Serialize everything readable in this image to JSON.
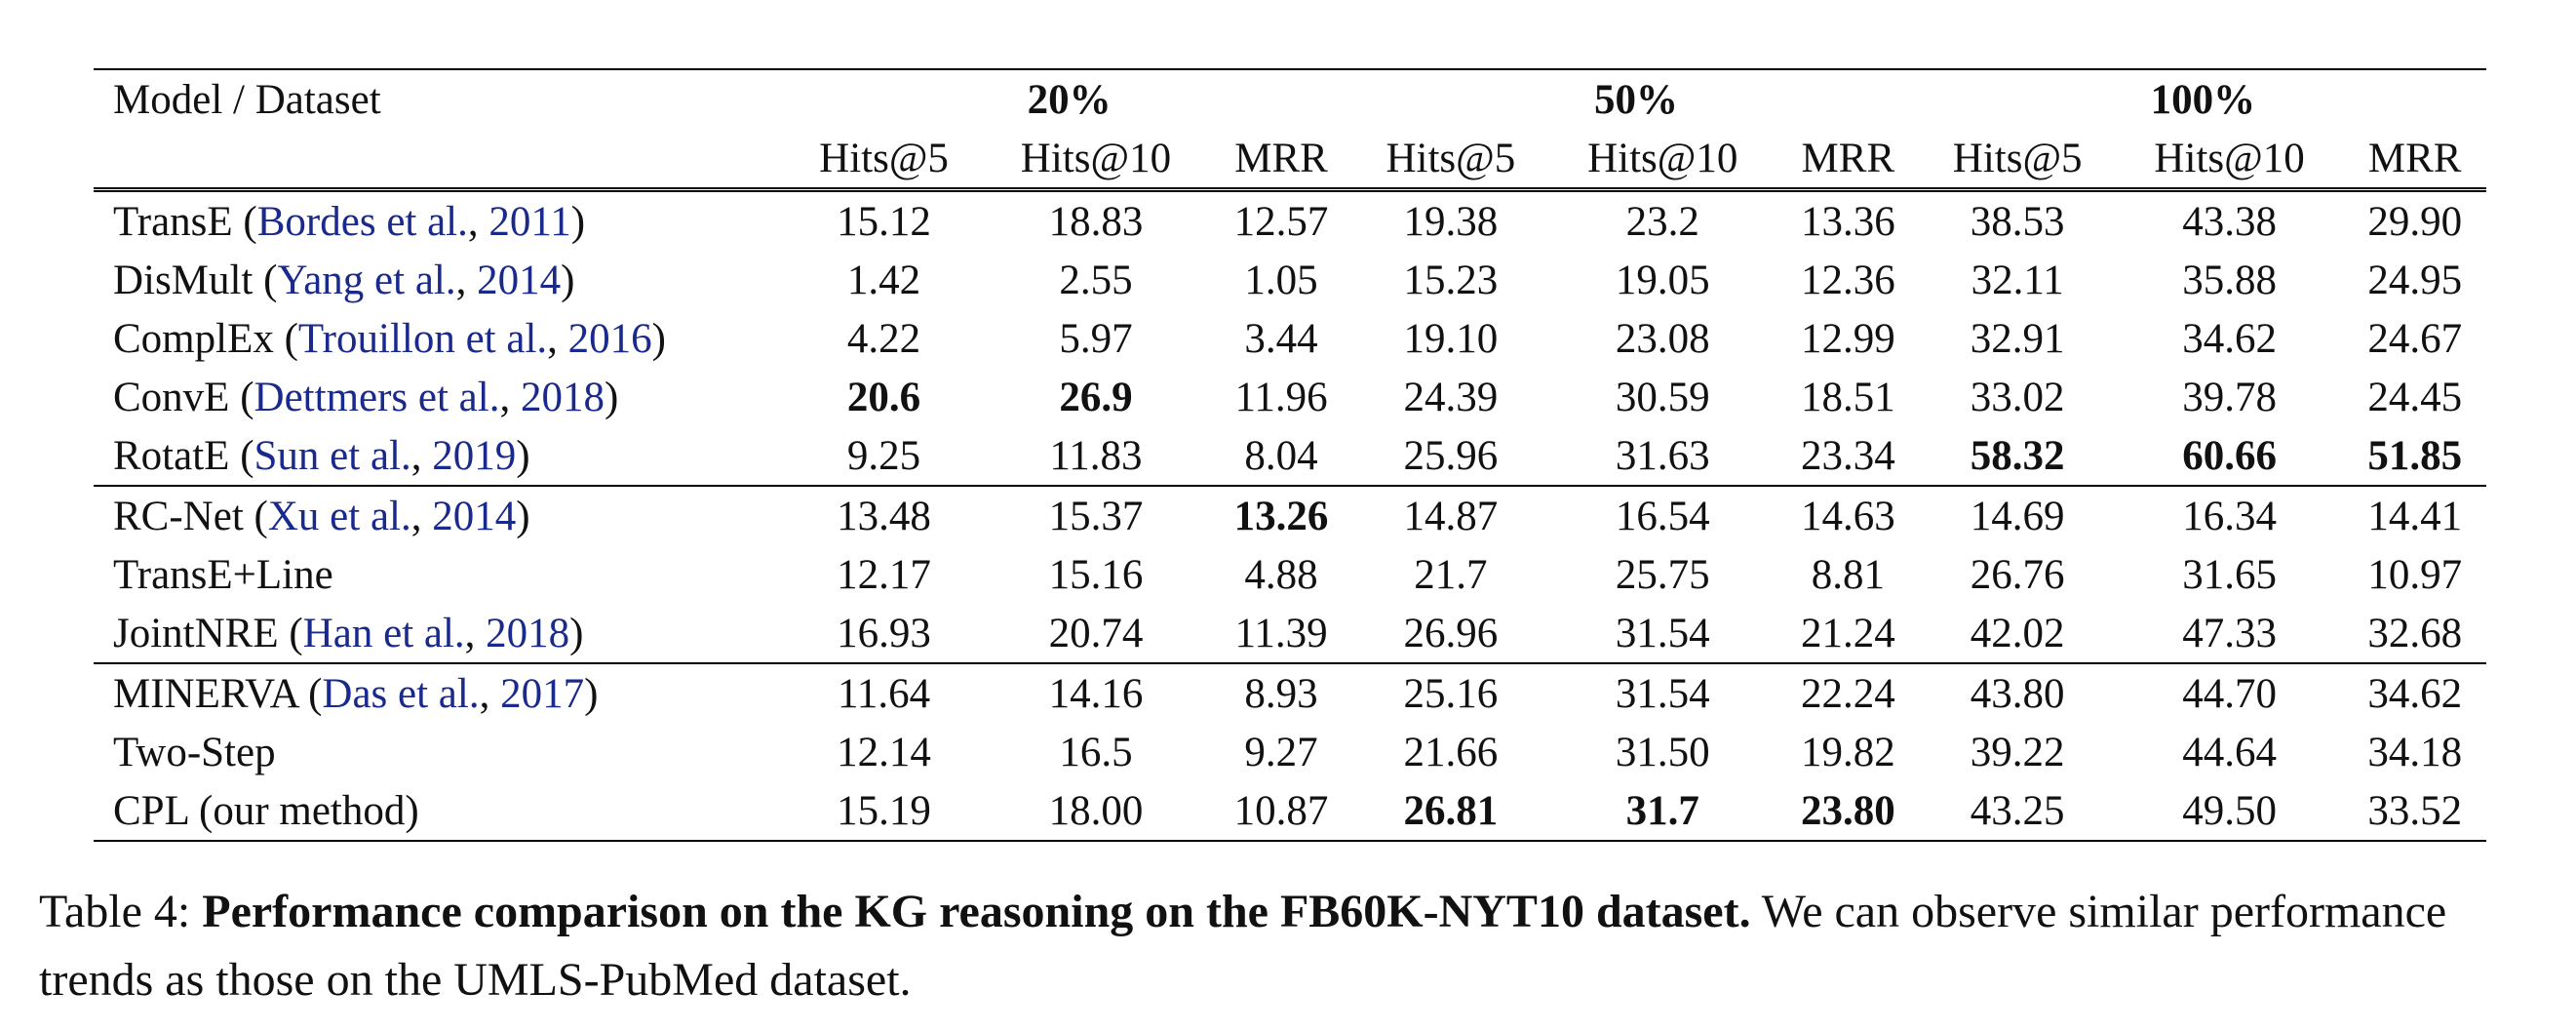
{
  "table": {
    "corner_header": "Model / Dataset",
    "groups": [
      "20%",
      "50%",
      "100%"
    ],
    "metrics": [
      "Hits@5",
      "Hits@10",
      "MRR",
      "Hits@5",
      "Hits@10",
      "MRR",
      "Hits@5",
      "Hits@10",
      "MRR"
    ],
    "sections": [
      {
        "rows": [
          {
            "model": "TransE",
            "cite_author": "Bordes et al.",
            "cite_year": "2011",
            "values": [
              "15.12",
              "18.83",
              "12.57",
              "19.38",
              "23.2",
              "13.36",
              "38.53",
              "43.38",
              "29.90"
            ],
            "bold": []
          },
          {
            "model": "DisMult",
            "cite_author": "Yang et al.",
            "cite_year": "2014",
            "values": [
              "1.42",
              "2.55",
              "1.05",
              "15.23",
              "19.05",
              "12.36",
              "32.11",
              "35.88",
              "24.95"
            ],
            "bold": []
          },
          {
            "model": "ComplEx",
            "cite_author": "Trouillon et al.",
            "cite_year": "2016",
            "values": [
              "4.22",
              "5.97",
              "3.44",
              "19.10",
              "23.08",
              "12.99",
              "32.91",
              "34.62",
              "24.67"
            ],
            "bold": []
          },
          {
            "model": "ConvE",
            "cite_author": "Dettmers et al.",
            "cite_year": "2018",
            "values": [
              "20.6",
              "26.9",
              "11.96",
              "24.39",
              "30.59",
              "18.51",
              "33.02",
              "39.78",
              "24.45"
            ],
            "bold": [
              0,
              1
            ]
          },
          {
            "model": "RotatE",
            "cite_author": "Sun et al.",
            "cite_year": "2019",
            "values": [
              "9.25",
              "11.83",
              "8.04",
              "25.96",
              "31.63",
              "23.34",
              "58.32",
              "60.66",
              "51.85"
            ],
            "bold": [
              6,
              7,
              8
            ]
          }
        ]
      },
      {
        "rows": [
          {
            "model": "RC-Net",
            "cite_author": "Xu et al.",
            "cite_year": "2014",
            "values": [
              "13.48",
              "15.37",
              "13.26",
              "14.87",
              "16.54",
              "14.63",
              "14.69",
              "16.34",
              "14.41"
            ],
            "bold": [
              2
            ]
          },
          {
            "model": "TransE+Line",
            "cite_author": "",
            "cite_year": "",
            "values": [
              "12.17",
              "15.16",
              "4.88",
              "21.7",
              "25.75",
              "8.81",
              "26.76",
              "31.65",
              "10.97"
            ],
            "bold": []
          },
          {
            "model": "JointNRE",
            "cite_author": "Han et al.",
            "cite_year": "2018",
            "values": [
              "16.93",
              "20.74",
              "11.39",
              "26.96",
              "31.54",
              "21.24",
              "42.02",
              "47.33",
              "32.68"
            ],
            "bold": []
          }
        ]
      },
      {
        "rows": [
          {
            "model": "MINERVA",
            "cite_author": "Das et al.",
            "cite_year": "2017",
            "values": [
              "11.64",
              "14.16",
              "8.93",
              "25.16",
              "31.54",
              "22.24",
              "43.80",
              "44.70",
              "34.62"
            ],
            "bold": []
          },
          {
            "model": "Two-Step",
            "cite_author": "",
            "cite_year": "",
            "values": [
              "12.14",
              "16.5",
              "9.27",
              "21.66",
              "31.50",
              "19.82",
              "39.22",
              "44.64",
              "34.18"
            ],
            "bold": []
          },
          {
            "model": "CPL (our method)",
            "cite_author": "",
            "cite_year": "",
            "values": [
              "15.19",
              "18.00",
              "10.87",
              "26.81",
              "31.7",
              "23.80",
              "43.25",
              "49.50",
              "33.52"
            ],
            "bold": [
              3,
              4,
              5
            ]
          }
        ]
      }
    ]
  },
  "caption": {
    "label": "Table 4: ",
    "bold_text": "Performance comparison on the KG reasoning on the FB60K-NYT10 dataset.",
    "text": " We can observe similar performance trends as those on the UMLS-PubMed dataset."
  },
  "colors": {
    "citation": "#1a2a8c",
    "text": "#111111"
  }
}
